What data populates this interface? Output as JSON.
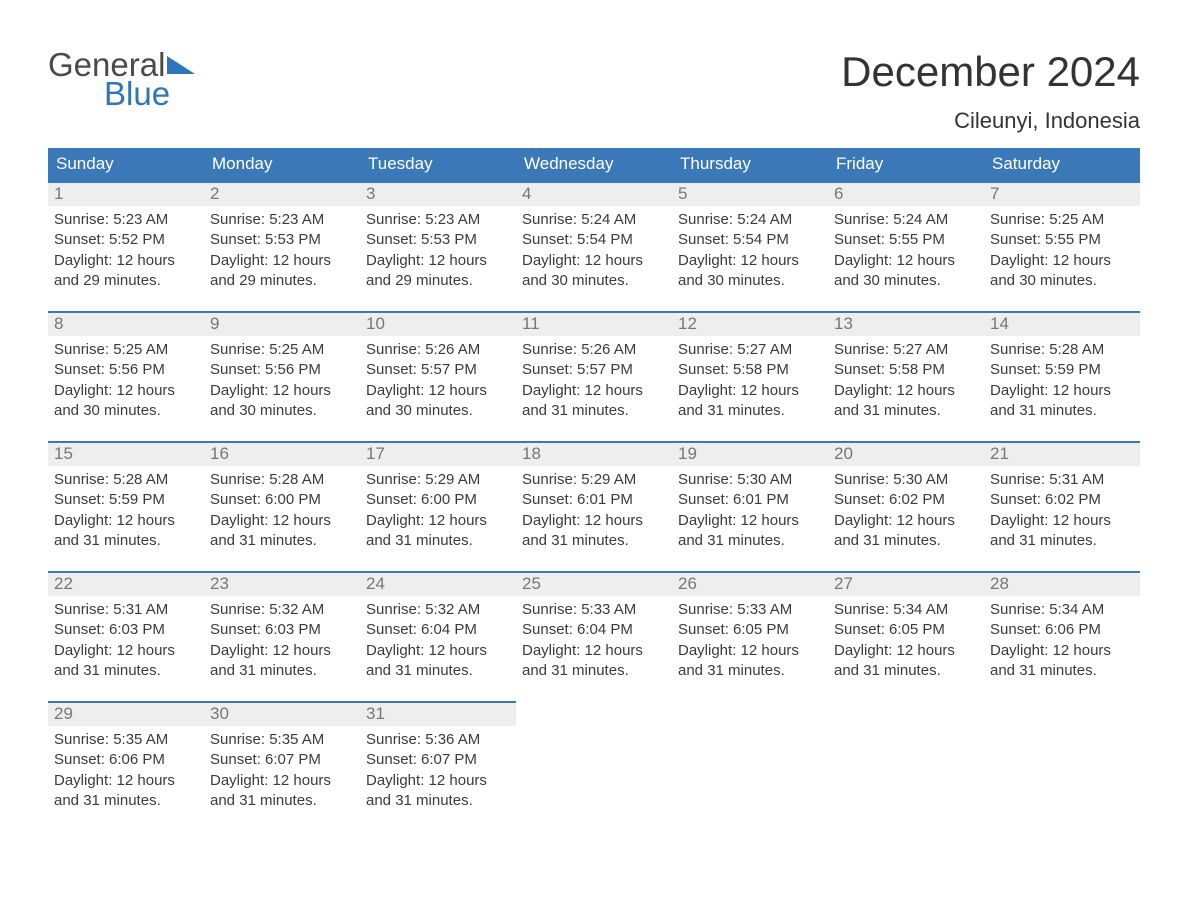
{
  "brand": {
    "line1": "General",
    "line2": "Blue"
  },
  "colors": {
    "header_bar": "#3b78b8",
    "header_text": "#ffffff",
    "daynum_bg": "#eeeeee",
    "daynum_fg": "#777777",
    "body_text": "#3b3b3b",
    "brand_gray": "#4a4a4a",
    "brand_blue": "#2f75bb",
    "page_bg": "#ffffff",
    "day_top_border": "#3b78b8"
  },
  "title": "December 2024",
  "location": "Cileunyi, Indonesia",
  "weekdays": [
    "Sunday",
    "Monday",
    "Tuesday",
    "Wednesday",
    "Thursday",
    "Friday",
    "Saturday"
  ],
  "weeks": [
    [
      {
        "n": "1",
        "sunrise": "Sunrise: 5:23 AM",
        "sunset": "Sunset: 5:52 PM",
        "daylight": "Daylight: 12 hours and 29 minutes."
      },
      {
        "n": "2",
        "sunrise": "Sunrise: 5:23 AM",
        "sunset": "Sunset: 5:53 PM",
        "daylight": "Daylight: 12 hours and 29 minutes."
      },
      {
        "n": "3",
        "sunrise": "Sunrise: 5:23 AM",
        "sunset": "Sunset: 5:53 PM",
        "daylight": "Daylight: 12 hours and 29 minutes."
      },
      {
        "n": "4",
        "sunrise": "Sunrise: 5:24 AM",
        "sunset": "Sunset: 5:54 PM",
        "daylight": "Daylight: 12 hours and 30 minutes."
      },
      {
        "n": "5",
        "sunrise": "Sunrise: 5:24 AM",
        "sunset": "Sunset: 5:54 PM",
        "daylight": "Daylight: 12 hours and 30 minutes."
      },
      {
        "n": "6",
        "sunrise": "Sunrise: 5:24 AM",
        "sunset": "Sunset: 5:55 PM",
        "daylight": "Daylight: 12 hours and 30 minutes."
      },
      {
        "n": "7",
        "sunrise": "Sunrise: 5:25 AM",
        "sunset": "Sunset: 5:55 PM",
        "daylight": "Daylight: 12 hours and 30 minutes."
      }
    ],
    [
      {
        "n": "8",
        "sunrise": "Sunrise: 5:25 AM",
        "sunset": "Sunset: 5:56 PM",
        "daylight": "Daylight: 12 hours and 30 minutes."
      },
      {
        "n": "9",
        "sunrise": "Sunrise: 5:25 AM",
        "sunset": "Sunset: 5:56 PM",
        "daylight": "Daylight: 12 hours and 30 minutes."
      },
      {
        "n": "10",
        "sunrise": "Sunrise: 5:26 AM",
        "sunset": "Sunset: 5:57 PM",
        "daylight": "Daylight: 12 hours and 30 minutes."
      },
      {
        "n": "11",
        "sunrise": "Sunrise: 5:26 AM",
        "sunset": "Sunset: 5:57 PM",
        "daylight": "Daylight: 12 hours and 31 minutes."
      },
      {
        "n": "12",
        "sunrise": "Sunrise: 5:27 AM",
        "sunset": "Sunset: 5:58 PM",
        "daylight": "Daylight: 12 hours and 31 minutes."
      },
      {
        "n": "13",
        "sunrise": "Sunrise: 5:27 AM",
        "sunset": "Sunset: 5:58 PM",
        "daylight": "Daylight: 12 hours and 31 minutes."
      },
      {
        "n": "14",
        "sunrise": "Sunrise: 5:28 AM",
        "sunset": "Sunset: 5:59 PM",
        "daylight": "Daylight: 12 hours and 31 minutes."
      }
    ],
    [
      {
        "n": "15",
        "sunrise": "Sunrise: 5:28 AM",
        "sunset": "Sunset: 5:59 PM",
        "daylight": "Daylight: 12 hours and 31 minutes."
      },
      {
        "n": "16",
        "sunrise": "Sunrise: 5:28 AM",
        "sunset": "Sunset: 6:00 PM",
        "daylight": "Daylight: 12 hours and 31 minutes."
      },
      {
        "n": "17",
        "sunrise": "Sunrise: 5:29 AM",
        "sunset": "Sunset: 6:00 PM",
        "daylight": "Daylight: 12 hours and 31 minutes."
      },
      {
        "n": "18",
        "sunrise": "Sunrise: 5:29 AM",
        "sunset": "Sunset: 6:01 PM",
        "daylight": "Daylight: 12 hours and 31 minutes."
      },
      {
        "n": "19",
        "sunrise": "Sunrise: 5:30 AM",
        "sunset": "Sunset: 6:01 PM",
        "daylight": "Daylight: 12 hours and 31 minutes."
      },
      {
        "n": "20",
        "sunrise": "Sunrise: 5:30 AM",
        "sunset": "Sunset: 6:02 PM",
        "daylight": "Daylight: 12 hours and 31 minutes."
      },
      {
        "n": "21",
        "sunrise": "Sunrise: 5:31 AM",
        "sunset": "Sunset: 6:02 PM",
        "daylight": "Daylight: 12 hours and 31 minutes."
      }
    ],
    [
      {
        "n": "22",
        "sunrise": "Sunrise: 5:31 AM",
        "sunset": "Sunset: 6:03 PM",
        "daylight": "Daylight: 12 hours and 31 minutes."
      },
      {
        "n": "23",
        "sunrise": "Sunrise: 5:32 AM",
        "sunset": "Sunset: 6:03 PM",
        "daylight": "Daylight: 12 hours and 31 minutes."
      },
      {
        "n": "24",
        "sunrise": "Sunrise: 5:32 AM",
        "sunset": "Sunset: 6:04 PM",
        "daylight": "Daylight: 12 hours and 31 minutes."
      },
      {
        "n": "25",
        "sunrise": "Sunrise: 5:33 AM",
        "sunset": "Sunset: 6:04 PM",
        "daylight": "Daylight: 12 hours and 31 minutes."
      },
      {
        "n": "26",
        "sunrise": "Sunrise: 5:33 AM",
        "sunset": "Sunset: 6:05 PM",
        "daylight": "Daylight: 12 hours and 31 minutes."
      },
      {
        "n": "27",
        "sunrise": "Sunrise: 5:34 AM",
        "sunset": "Sunset: 6:05 PM",
        "daylight": "Daylight: 12 hours and 31 minutes."
      },
      {
        "n": "28",
        "sunrise": "Sunrise: 5:34 AM",
        "sunset": "Sunset: 6:06 PM",
        "daylight": "Daylight: 12 hours and 31 minutes."
      }
    ],
    [
      {
        "n": "29",
        "sunrise": "Sunrise: 5:35 AM",
        "sunset": "Sunset: 6:06 PM",
        "daylight": "Daylight: 12 hours and 31 minutes."
      },
      {
        "n": "30",
        "sunrise": "Sunrise: 5:35 AM",
        "sunset": "Sunset: 6:07 PM",
        "daylight": "Daylight: 12 hours and 31 minutes."
      },
      {
        "n": "31",
        "sunrise": "Sunrise: 5:36 AM",
        "sunset": "Sunset: 6:07 PM",
        "daylight": "Daylight: 12 hours and 31 minutes."
      },
      null,
      null,
      null,
      null
    ]
  ]
}
